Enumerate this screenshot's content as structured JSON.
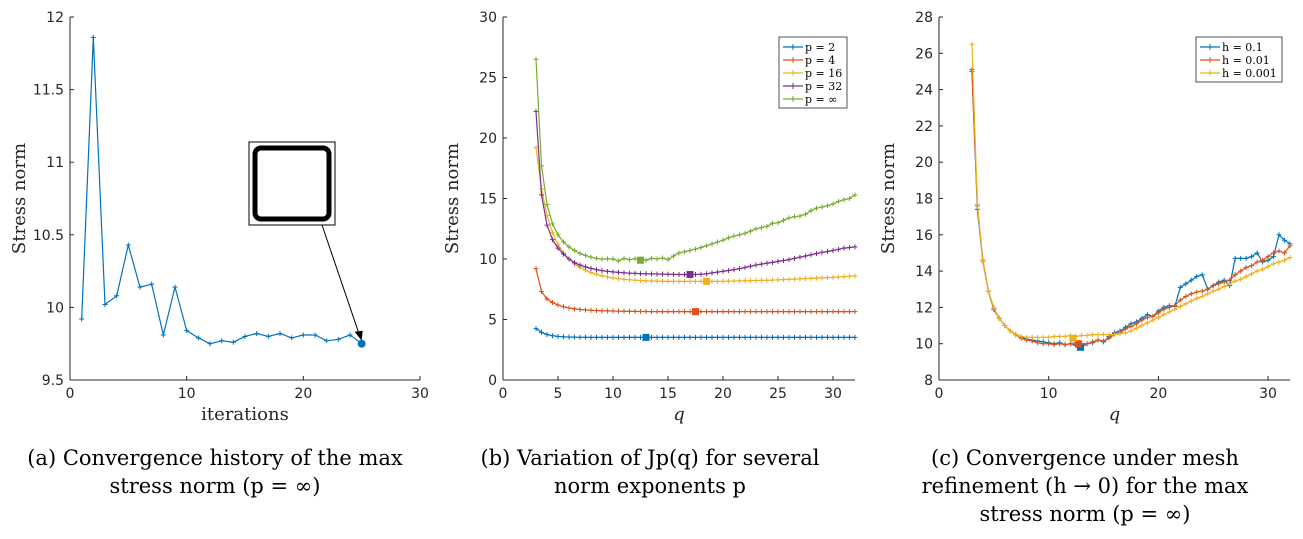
{
  "colors": {
    "blue": "#0072BD",
    "orange": "#D95319",
    "yellow": "#EDB120",
    "purple": "#7E2F8E",
    "green": "#77AC30",
    "axis": "#262626"
  },
  "captions": [
    {
      "tag": "(a)",
      "lines": [
        "Convergence history of the max",
        "stress norm (p = ∞)"
      ]
    },
    {
      "tag": "(b)",
      "lines": [
        "Variation of Jp(q) for several",
        "norm exponents p"
      ]
    },
    {
      "tag": "(c)",
      "lines": [
        "Convergence under mesh",
        "refinement (h → 0) for the max",
        "stress norm (p = ∞)"
      ]
    }
  ],
  "chart_data": [
    {
      "type": "line",
      "xlabel": "iterations",
      "ylabel": "Stress norm",
      "xlim": [
        0,
        30
      ],
      "ylim": [
        9.5,
        12
      ],
      "xticks": [
        0,
        10,
        20,
        30
      ],
      "yticks": [
        9.5,
        10,
        10.5,
        11,
        11.5,
        12
      ],
      "grid": false,
      "series": [
        {
          "color": "blue",
          "x": [
            1,
            2,
            3,
            4,
            5,
            6,
            7,
            8,
            9,
            10,
            11,
            12,
            13,
            14,
            15,
            16,
            17,
            18,
            19,
            20,
            21,
            22,
            23,
            24,
            25
          ],
          "y": [
            9.92,
            11.86,
            10.02,
            10.08,
            10.43,
            10.14,
            10.16,
            9.81,
            10.14,
            9.84,
            9.79,
            9.75,
            9.77,
            9.76,
            9.8,
            9.82,
            9.8,
            9.82,
            9.79,
            9.81,
            9.81,
            9.77,
            9.78,
            9.81,
            9.75
          ]
        }
      ],
      "highlight": {
        "x": 25,
        "y": 9.75
      }
    },
    {
      "type": "line",
      "xlabel": "q",
      "ylabel": "Stress norm",
      "xlim": [
        0,
        32
      ],
      "ylim": [
        0,
        30
      ],
      "xticks": [
        0,
        5,
        10,
        15,
        20,
        25,
        30
      ],
      "yticks": [
        0,
        5,
        10,
        15,
        20,
        25,
        30
      ],
      "grid": false,
      "legend": "top-right",
      "x": [
        3,
        3.5,
        4,
        4.5,
        5,
        5.5,
        6,
        6.5,
        7,
        7.5,
        8,
        8.5,
        9,
        9.5,
        10,
        10.5,
        11,
        11.5,
        12,
        12.5,
        13,
        13.5,
        14,
        14.5,
        15,
        15.5,
        16,
        16.5,
        17,
        17.5,
        18,
        18.5,
        19,
        19.5,
        20,
        20.5,
        21,
        21.5,
        22,
        22.5,
        23,
        23.5,
        24,
        24.5,
        25,
        25.5,
        26,
        26.5,
        27,
        27.5,
        28,
        28.5,
        29,
        29.5,
        30,
        30.5,
        31,
        31.5,
        32
      ],
      "series": [
        {
          "name": "p = 2",
          "color": "blue",
          "values": [
            4.25,
            3.94,
            3.76,
            3.66,
            3.6,
            3.57,
            3.55,
            3.54,
            3.53,
            3.53,
            3.52,
            3.52,
            3.52,
            3.52,
            3.52,
            3.52,
            3.52,
            3.52,
            3.52,
            3.52,
            3.52,
            3.52,
            3.52,
            3.52,
            3.52,
            3.52,
            3.52,
            3.52,
            3.52,
            3.52,
            3.52,
            3.52,
            3.52,
            3.52,
            3.52,
            3.52,
            3.52,
            3.52,
            3.52,
            3.52,
            3.52,
            3.52,
            3.52,
            3.52,
            3.52,
            3.52,
            3.52,
            3.52,
            3.52,
            3.52,
            3.52,
            3.52,
            3.52,
            3.52,
            3.52,
            3.52,
            3.52,
            3.52,
            3.52
          ],
          "marker": {
            "x": 13,
            "y": 3.52
          }
        },
        {
          "name": "p = 4",
          "color": "orange",
          "values": [
            9.2,
            7.3,
            6.7,
            6.4,
            6.2,
            6.05,
            5.95,
            5.88,
            5.83,
            5.79,
            5.76,
            5.74,
            5.72,
            5.71,
            5.7,
            5.69,
            5.68,
            5.67,
            5.67,
            5.66,
            5.66,
            5.65,
            5.65,
            5.65,
            5.65,
            5.65,
            5.65,
            5.65,
            5.65,
            5.65,
            5.65,
            5.65,
            5.65,
            5.65,
            5.65,
            5.65,
            5.65,
            5.65,
            5.65,
            5.65,
            5.65,
            5.65,
            5.65,
            5.65,
            5.65,
            5.65,
            5.65,
            5.65,
            5.65,
            5.65,
            5.65,
            5.65,
            5.65,
            5.65,
            5.65,
            5.65,
            5.65,
            5.65,
            5.65
          ],
          "marker": {
            "x": 17.5,
            "y": 5.65
          }
        },
        {
          "name": "p = 16",
          "color": "yellow",
          "values": [
            19.2,
            15.8,
            13.6,
            12.2,
            11.2,
            10.5,
            10.0,
            9.6,
            9.3,
            9.07,
            8.88,
            8.73,
            8.61,
            8.51,
            8.43,
            8.37,
            8.32,
            8.28,
            8.25,
            8.22,
            8.2,
            8.18,
            8.17,
            8.16,
            8.15,
            8.15,
            8.15,
            8.15,
            8.15,
            8.15,
            8.15,
            8.15,
            8.15,
            8.15,
            8.16,
            8.17,
            8.18,
            8.19,
            8.2,
            8.21,
            8.22,
            8.23,
            8.24,
            8.26,
            8.28,
            8.3,
            8.32,
            8.34,
            8.36,
            8.38,
            8.4,
            8.42,
            8.44,
            8.46,
            8.48,
            8.51,
            8.54,
            8.57,
            8.6
          ],
          "marker": {
            "x": 18.5,
            "y": 8.15
          }
        },
        {
          "name": "p = 32",
          "color": "purple",
          "values": [
            22.2,
            15.3,
            12.8,
            11.6,
            10.9,
            10.4,
            10.0,
            9.7,
            9.5,
            9.35,
            9.22,
            9.12,
            9.04,
            8.98,
            8.93,
            8.89,
            8.86,
            8.83,
            8.81,
            8.79,
            8.78,
            8.77,
            8.76,
            8.75,
            8.74,
            8.73,
            8.72,
            8.72,
            8.72,
            8.72,
            8.74,
            8.78,
            8.85,
            8.92,
            8.98,
            9.05,
            9.12,
            9.2,
            9.3,
            9.4,
            9.5,
            9.58,
            9.65,
            9.72,
            9.8,
            9.88,
            9.95,
            10.05,
            10.15,
            10.25,
            10.35,
            10.45,
            10.55,
            10.62,
            10.7,
            10.8,
            10.9,
            10.95,
            11.0
          ],
          "marker": {
            "x": 17,
            "y": 8.72
          }
        },
        {
          "name": "p = ∞",
          "color": "green",
          "values": [
            26.5,
            17.7,
            14.5,
            12.9,
            12.0,
            11.4,
            11.0,
            10.7,
            10.45,
            10.3,
            10.15,
            10.05,
            9.98,
            10.02,
            10.0,
            9.85,
            10.05,
            9.95,
            10.02,
            10.0,
            9.9,
            10.05,
            10.0,
            10.08,
            9.95,
            10.25,
            10.5,
            10.6,
            10.7,
            10.82,
            10.95,
            11.1,
            11.25,
            11.4,
            11.55,
            11.75,
            11.9,
            12.0,
            12.12,
            12.3,
            12.5,
            12.6,
            12.7,
            12.95,
            13.0,
            13.2,
            13.4,
            13.5,
            13.55,
            13.7,
            14.0,
            14.2,
            14.3,
            14.4,
            14.55,
            14.75,
            14.9,
            15.0,
            15.3
          ],
          "marker": {
            "x": 12.5,
            "y": 9.9
          }
        }
      ]
    },
    {
      "type": "line",
      "xlabel": "q",
      "ylabel": "Stress norm",
      "xlim": [
        0,
        32
      ],
      "ylim": [
        8,
        28
      ],
      "xticks": [
        0,
        10,
        20,
        30
      ],
      "yticks": [
        8,
        10,
        12,
        14,
        16,
        18,
        20,
        22,
        24,
        26,
        28
      ],
      "grid": false,
      "legend": "top-right",
      "series": [
        {
          "name": "h = 0.1",
          "color": "blue",
          "x": [
            3,
            3.5,
            4,
            4.5,
            5,
            5.5,
            6,
            6.5,
            7,
            7.5,
            8,
            8.5,
            9,
            9.5,
            10,
            10.5,
            11,
            11.5,
            12,
            12.5,
            13,
            13.5,
            14,
            14.5,
            15,
            15.5,
            16,
            16.5,
            17,
            17.5,
            18,
            18.5,
            19,
            19.5,
            20,
            20.5,
            21,
            21.5,
            22,
            22.5,
            23,
            23.5,
            24,
            24.5,
            25,
            25.5,
            26,
            26.5,
            27,
            27.5,
            28,
            28.5,
            29,
            29.5,
            30,
            30.5,
            31,
            31.5,
            32
          ],
          "values": [
            25.1,
            17.4,
            14.5,
            12.9,
            11.9,
            11.4,
            11.0,
            10.7,
            10.5,
            10.35,
            10.25,
            10.2,
            10.15,
            10.1,
            10.05,
            10.0,
            10.05,
            9.95,
            10.0,
            9.9,
            9.8,
            10.0,
            10.05,
            10.2,
            10.1,
            10.4,
            10.6,
            10.7,
            10.9,
            11.1,
            11.2,
            11.4,
            11.6,
            11.5,
            11.8,
            12.0,
            12.1,
            12.05,
            13.1,
            13.3,
            13.5,
            13.7,
            13.8,
            13.0,
            13.2,
            13.4,
            13.5,
            13.2,
            14.7,
            14.7,
            14.7,
            14.8,
            15.0,
            14.5,
            14.6,
            14.8,
            16.0,
            15.7,
            15.5
          ],
          "marker": {
            "x": 12.9,
            "y": 9.8
          }
        },
        {
          "name": "h = 0.01",
          "color": "orange",
          "x": [
            3,
            3.5,
            4,
            4.5,
            5,
            5.5,
            6,
            6.5,
            7,
            7.5,
            8,
            8.5,
            9,
            9.5,
            10,
            10.5,
            11,
            11.5,
            12,
            12.5,
            13,
            13.5,
            14,
            14.5,
            15,
            15.5,
            16,
            16.5,
            17,
            17.5,
            18,
            18.5,
            19,
            19.5,
            20,
            20.5,
            21,
            21.5,
            22,
            22.5,
            23,
            23.5,
            24,
            24.5,
            25,
            25.5,
            26,
            26.5,
            27,
            27.5,
            28,
            28.5,
            29,
            29.5,
            30,
            30.5,
            31,
            31.5,
            32
          ],
          "values": [
            25.0,
            17.6,
            14.6,
            12.9,
            11.9,
            11.4,
            11.0,
            10.7,
            10.5,
            10.3,
            10.2,
            10.15,
            10.05,
            10.0,
            10.0,
            9.95,
            10.0,
            9.95,
            10.0,
            10.05,
            10.0,
            10.0,
            10.1,
            10.2,
            10.15,
            10.3,
            10.5,
            10.6,
            10.8,
            10.95,
            11.1,
            11.3,
            11.45,
            11.5,
            11.7,
            11.9,
            12.0,
            12.1,
            12.4,
            12.6,
            12.75,
            12.85,
            12.9,
            13.0,
            13.2,
            13.3,
            13.4,
            13.5,
            13.8,
            14.0,
            14.2,
            14.3,
            14.5,
            14.6,
            14.8,
            15.0,
            15.1,
            15.0,
            15.4
          ],
          "marker": {
            "x": 12.7,
            "y": 10.0
          }
        },
        {
          "name": "h = 0.001",
          "color": "yellow",
          "x": [
            3,
            3.5,
            4,
            4.5,
            5,
            5.5,
            6,
            6.5,
            7,
            7.5,
            8,
            8.5,
            9,
            9.5,
            10,
            10.5,
            11,
            11.5,
            12,
            12.5,
            13,
            13.5,
            14,
            14.5,
            15,
            15.5,
            16,
            16.5,
            17,
            17.5,
            18,
            18.5,
            19,
            19.5,
            20,
            20.5,
            21,
            21.5,
            22,
            22.5,
            23,
            23.5,
            24,
            24.5,
            25,
            25.5,
            26,
            26.5,
            27,
            27.5,
            28,
            28.5,
            29,
            29.5,
            30,
            30.5,
            31,
            31.5,
            32
          ],
          "values": [
            26.5,
            17.7,
            14.5,
            12.9,
            12.0,
            11.4,
            11.0,
            10.7,
            10.5,
            10.4,
            10.35,
            10.35,
            10.35,
            10.35,
            10.35,
            10.4,
            10.4,
            10.4,
            10.45,
            10.4,
            10.45,
            10.45,
            10.5,
            10.5,
            10.5,
            10.5,
            10.5,
            10.55,
            10.6,
            10.7,
            10.85,
            11.0,
            11.15,
            11.3,
            11.45,
            11.6,
            11.75,
            11.9,
            12.05,
            12.2,
            12.35,
            12.5,
            12.6,
            12.75,
            12.9,
            13.0,
            13.15,
            13.3,
            13.45,
            13.55,
            13.7,
            13.85,
            14.0,
            14.1,
            14.25,
            14.4,
            14.5,
            14.6,
            14.75
          ],
          "marker": {
            "x": 12.2,
            "y": 10.3
          }
        }
      ]
    }
  ]
}
